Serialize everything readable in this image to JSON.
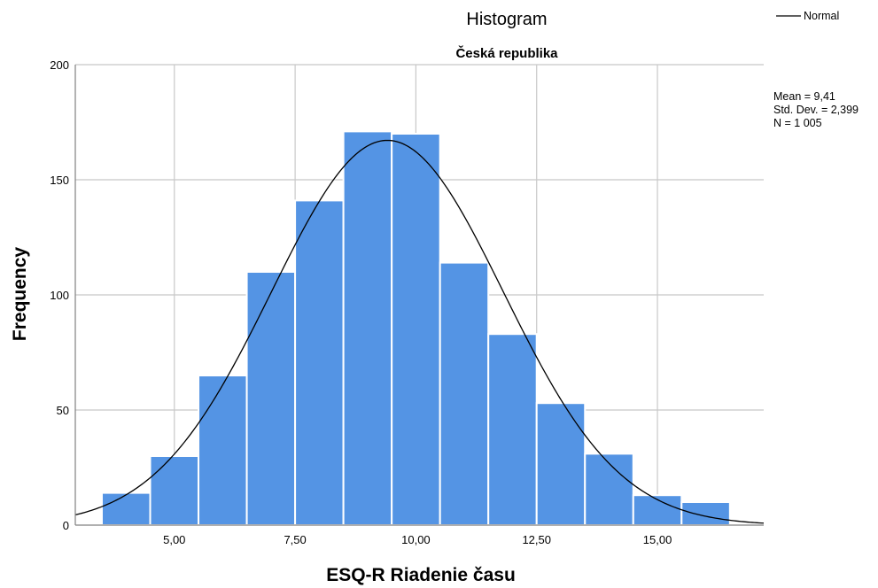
{
  "chart_data": {
    "type": "bar",
    "title": "Histogram",
    "subtitle": "Česká republika",
    "xlabel": "ESQ-R Riadenie času",
    "ylabel": "Frequency",
    "xlim": [
      2.95,
      17.2
    ],
    "ylim": [
      0,
      200
    ],
    "x_ticks": [
      5,
      7.5,
      10,
      12.5,
      15
    ],
    "x_tick_labels": [
      "5,00",
      "7,50",
      "10,00",
      "12,50",
      "15,00"
    ],
    "y_ticks": [
      0,
      50,
      100,
      150,
      200
    ],
    "y_tick_labels": [
      "0",
      "50",
      "100",
      "150",
      "200"
    ],
    "grid": true,
    "bins": [
      {
        "x0": 3.5,
        "x1": 4.5,
        "value": 14
      },
      {
        "x0": 4.5,
        "x1": 5.5,
        "value": 30
      },
      {
        "x0": 5.5,
        "x1": 6.5,
        "value": 65
      },
      {
        "x0": 6.5,
        "x1": 7.5,
        "value": 110
      },
      {
        "x0": 7.5,
        "x1": 8.5,
        "value": 141
      },
      {
        "x0": 8.5,
        "x1": 9.5,
        "value": 171
      },
      {
        "x0": 9.5,
        "x1": 10.5,
        "value": 170
      },
      {
        "x0": 10.5,
        "x1": 11.5,
        "value": 114
      },
      {
        "x0": 11.5,
        "x1": 12.5,
        "value": 83
      },
      {
        "x0": 12.5,
        "x1": 13.5,
        "value": 53
      },
      {
        "x0": 13.5,
        "x1": 14.5,
        "value": 31
      },
      {
        "x0": 14.5,
        "x1": 15.5,
        "value": 13
      },
      {
        "x0": 15.5,
        "x1": 16.5,
        "value": 10
      }
    ],
    "normal_curve": {
      "mean": 9.41,
      "std": 2.399,
      "n": 1005,
      "bin_width": 1
    },
    "stats_text": [
      "Mean = 9,41",
      "Std. Dev. = 2,399",
      "N = 1 005"
    ],
    "legend": {
      "entries": [
        "Normal"
      ],
      "placement": "top-right"
    },
    "colors": {
      "bar": "#5494e4",
      "bar_edge": "#ffffff",
      "grid": "#c8c8c8",
      "curve": "#000000",
      "axis": "#808080"
    }
  }
}
